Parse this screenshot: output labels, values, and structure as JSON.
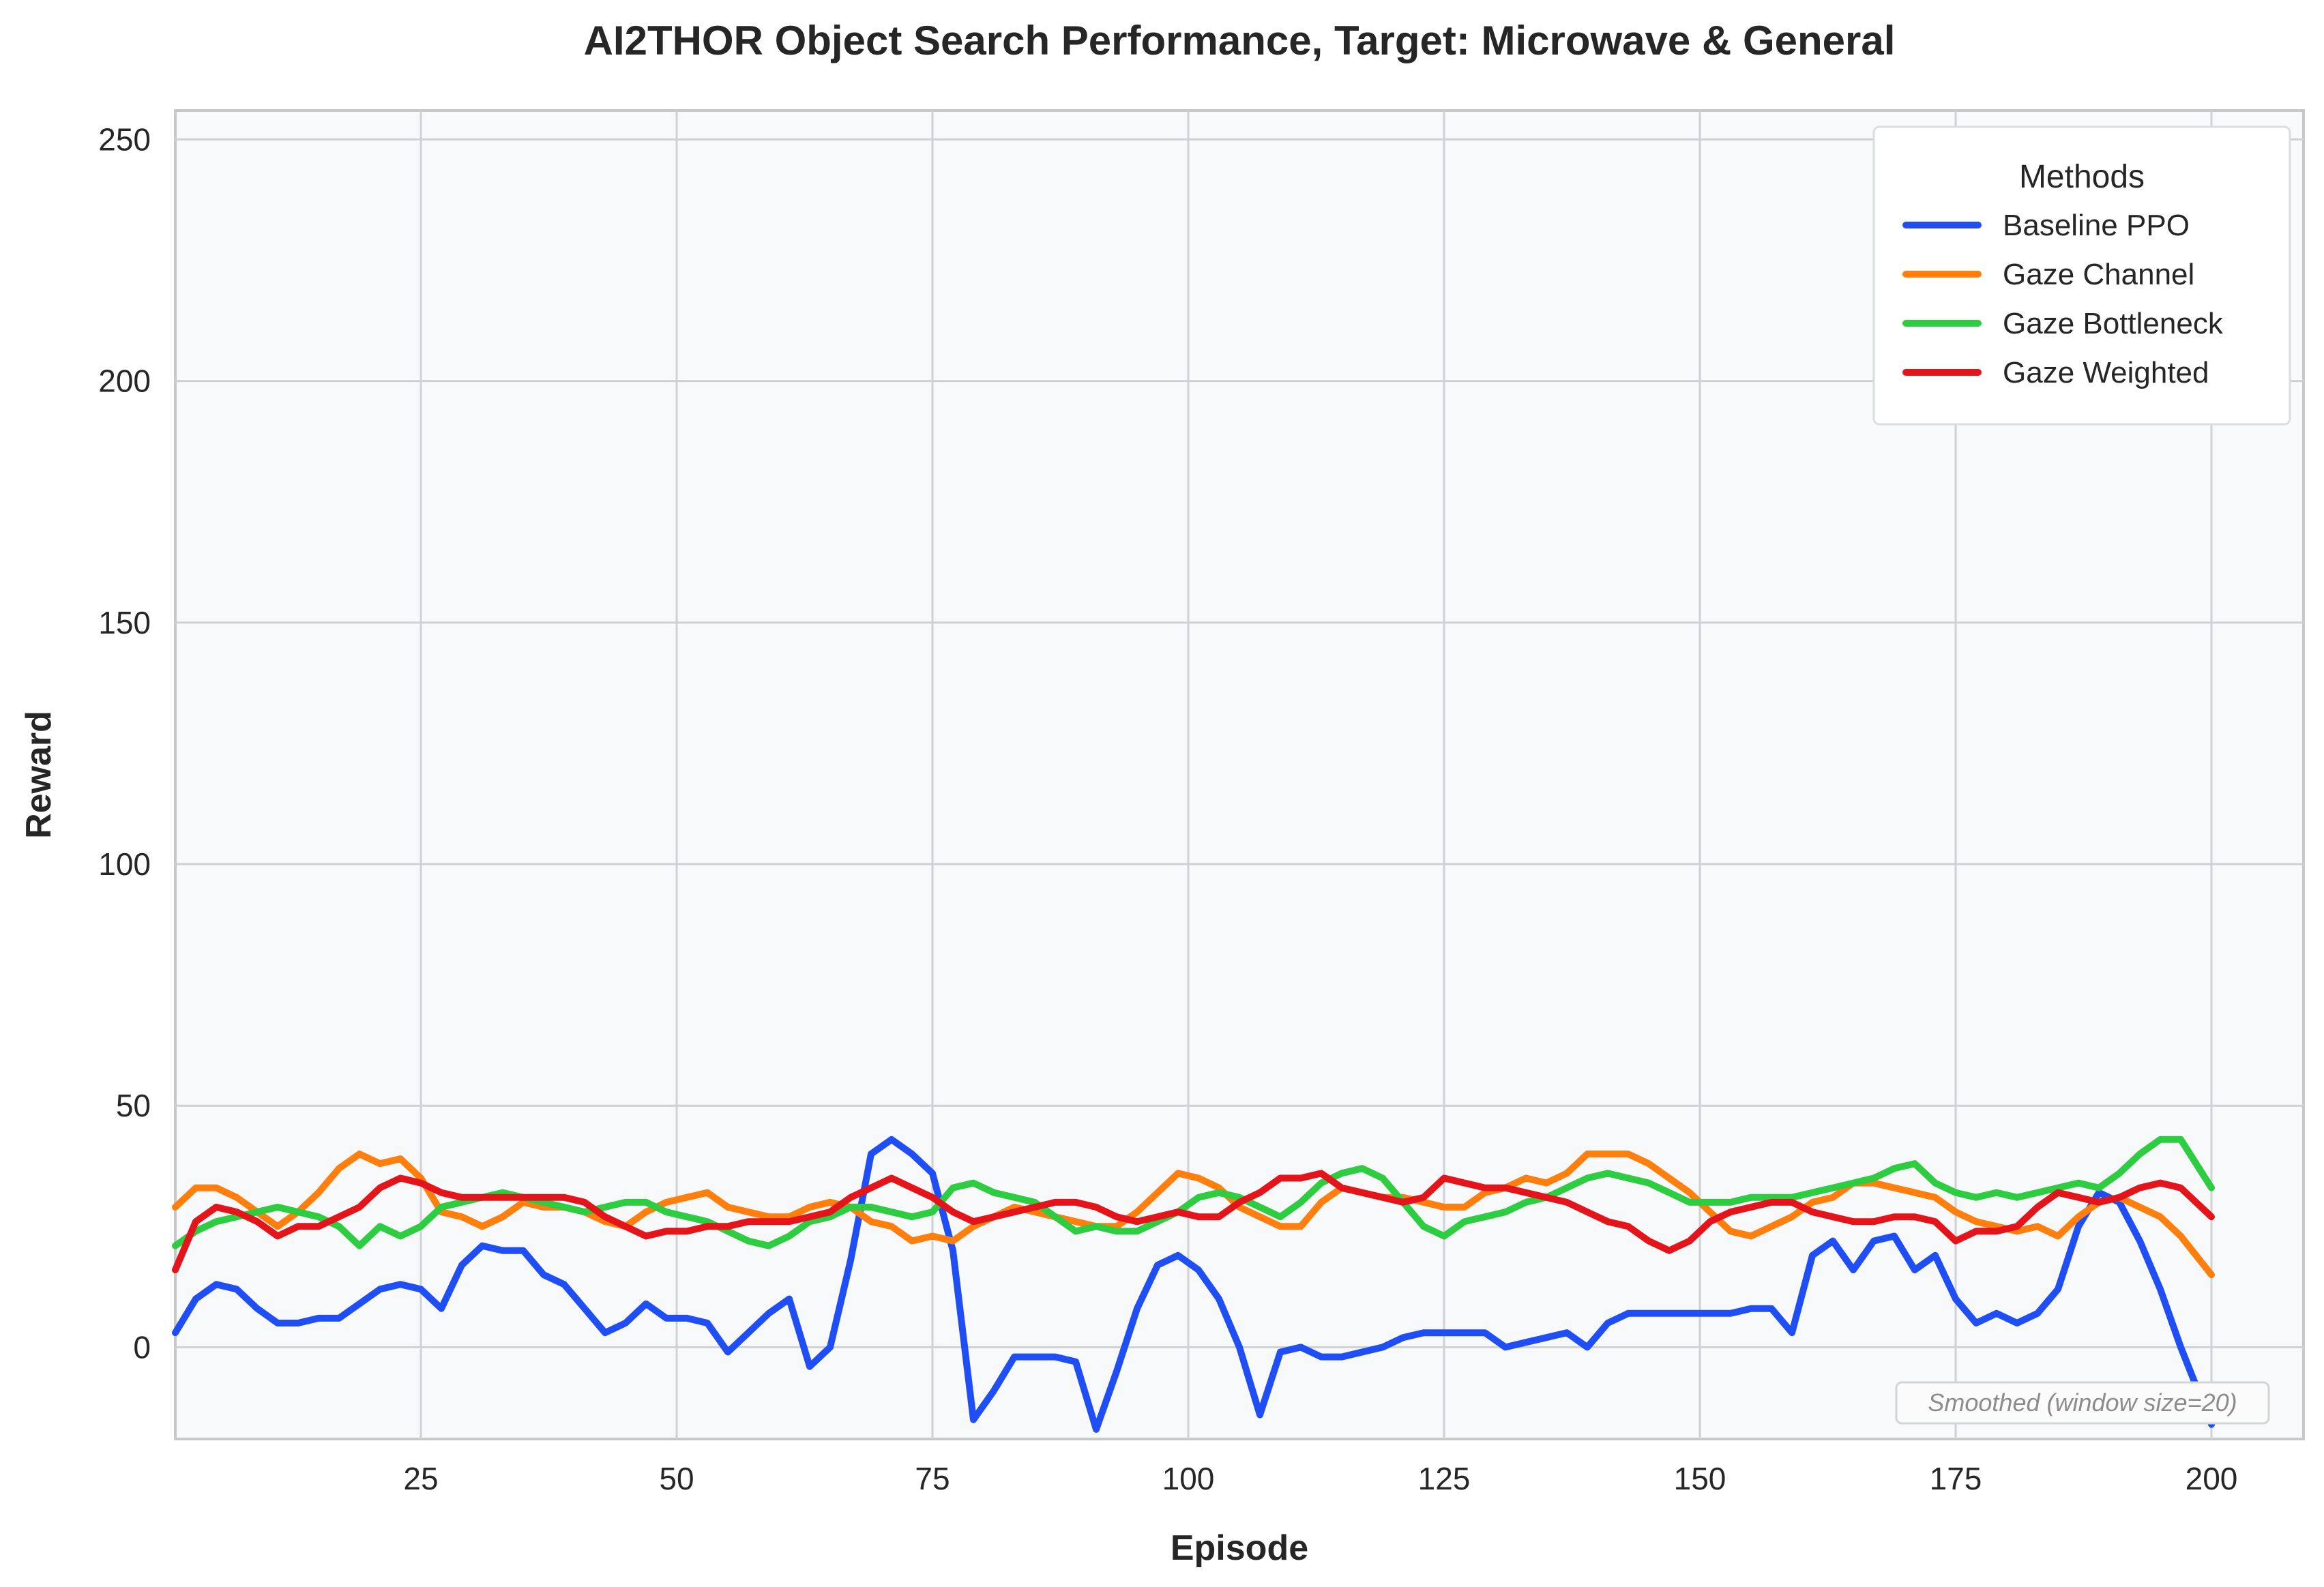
{
  "chart_data": {
    "type": "line",
    "title": "AI2THOR Object Search Performance, Target: Microwave & General",
    "xlabel": "Episode",
    "ylabel": "Reward",
    "xlim": [
      1,
      209
    ],
    "ylim": [
      -19,
      256
    ],
    "xticks": [
      25,
      50,
      75,
      100,
      125,
      150,
      175,
      200
    ],
    "yticks": [
      0,
      50,
      100,
      150,
      200,
      250
    ],
    "grid": true,
    "legend_title": "Methods",
    "legend_position": "top-right",
    "annotation": "Smoothed (window size=20)",
    "series": [
      {
        "name": "Baseline PPO",
        "color": "#1f4ef5",
        "x": [
          1,
          3,
          5,
          7,
          9,
          11,
          13,
          15,
          17,
          19,
          21,
          23,
          25,
          27,
          29,
          31,
          33,
          35,
          37,
          39,
          41,
          43,
          45,
          47,
          49,
          51,
          53,
          55,
          57,
          59,
          61,
          63,
          65,
          67,
          69,
          71,
          73,
          75,
          77,
          79,
          81,
          83,
          85,
          87,
          89,
          91,
          93,
          95,
          97,
          99,
          101,
          103,
          105,
          107,
          109,
          111,
          113,
          115,
          117,
          119,
          121,
          123,
          125,
          127,
          129,
          131,
          133,
          135,
          137,
          139,
          141,
          143,
          145,
          147,
          149,
          151,
          153,
          155,
          157,
          159,
          161,
          163,
          165,
          167,
          169,
          171,
          173,
          175,
          177,
          179,
          181,
          183,
          185,
          187,
          189,
          191,
          193,
          195,
          197,
          200
        ],
        "y": [
          3,
          10,
          13,
          12,
          8,
          5,
          5,
          6,
          6,
          9,
          12,
          13,
          12,
          8,
          17,
          21,
          20,
          20,
          15,
          13,
          8,
          3,
          5,
          9,
          6,
          6,
          5,
          -1,
          3,
          7,
          10,
          -4,
          0,
          18,
          40,
          43,
          40,
          36,
          20,
          -15,
          -9,
          -2,
          -2,
          -2,
          -3,
          -17,
          -5,
          8,
          17,
          19,
          16,
          10,
          0,
          -14,
          -1,
          0,
          -2,
          -2,
          -1,
          0,
          2,
          3,
          3,
          3,
          3,
          0,
          1,
          2,
          3,
          0,
          5,
          7,
          7,
          7,
          7,
          7,
          7,
          8,
          8,
          3,
          19,
          22,
          16,
          22,
          23,
          16,
          19,
          10,
          5,
          7,
          5,
          7,
          12,
          25,
          32,
          30,
          22,
          12,
          0,
          -16
        ]
      },
      {
        "name": "Gaze Channel",
        "color": "#ff7f0e",
        "x": [
          1,
          3,
          5,
          7,
          9,
          11,
          13,
          15,
          17,
          19,
          21,
          23,
          25,
          27,
          29,
          31,
          33,
          35,
          37,
          39,
          41,
          43,
          45,
          47,
          49,
          51,
          53,
          55,
          57,
          59,
          61,
          63,
          65,
          67,
          69,
          71,
          73,
          75,
          77,
          79,
          81,
          83,
          85,
          87,
          89,
          91,
          93,
          95,
          97,
          99,
          101,
          103,
          105,
          107,
          109,
          111,
          113,
          115,
          117,
          119,
          121,
          123,
          125,
          127,
          129,
          131,
          133,
          135,
          137,
          139,
          141,
          143,
          145,
          147,
          149,
          151,
          153,
          155,
          157,
          159,
          161,
          163,
          165,
          167,
          169,
          171,
          173,
          175,
          177,
          179,
          181,
          183,
          185,
          187,
          189,
          191,
          193,
          195,
          197,
          200
        ],
        "y": [
          29,
          33,
          33,
          31,
          28,
          25,
          28,
          32,
          37,
          40,
          38,
          39,
          35,
          28,
          27,
          25,
          27,
          30,
          29,
          29,
          28,
          26,
          25,
          28,
          30,
          31,
          32,
          29,
          28,
          27,
          27,
          29,
          30,
          29,
          26,
          25,
          22,
          23,
          22,
          25,
          27,
          29,
          28,
          27,
          26,
          25,
          25,
          28,
          32,
          36,
          35,
          33,
          29,
          27,
          25,
          25,
          30,
          33,
          32,
          31,
          31,
          30,
          29,
          29,
          32,
          33,
          35,
          34,
          36,
          40,
          40,
          40,
          38,
          35,
          32,
          28,
          24,
          23,
          25,
          27,
          30,
          31,
          34,
          34,
          33,
          32,
          31,
          28,
          26,
          25,
          24,
          25,
          23,
          27,
          30,
          31,
          29,
          27,
          23,
          15
        ]
      },
      {
        "name": "Gaze Bottleneck",
        "color": "#2ecc40",
        "x": [
          1,
          3,
          5,
          7,
          9,
          11,
          13,
          15,
          17,
          19,
          21,
          23,
          25,
          27,
          29,
          31,
          33,
          35,
          37,
          39,
          41,
          43,
          45,
          47,
          49,
          51,
          53,
          55,
          57,
          59,
          61,
          63,
          65,
          67,
          69,
          71,
          73,
          75,
          77,
          79,
          81,
          83,
          85,
          87,
          89,
          91,
          93,
          95,
          97,
          99,
          101,
          103,
          105,
          107,
          109,
          111,
          113,
          115,
          117,
          119,
          121,
          123,
          125,
          127,
          129,
          131,
          133,
          135,
          137,
          139,
          141,
          143,
          145,
          147,
          149,
          151,
          153,
          155,
          157,
          159,
          161,
          163,
          165,
          167,
          169,
          171,
          173,
          175,
          177,
          179,
          181,
          183,
          185,
          187,
          189,
          191,
          193,
          195,
          197,
          200
        ],
        "y": [
          21,
          24,
          26,
          27,
          28,
          29,
          28,
          27,
          25,
          21,
          25,
          23,
          25,
          29,
          30,
          31,
          32,
          31,
          30,
          29,
          28,
          29,
          30,
          30,
          28,
          27,
          26,
          24,
          22,
          21,
          23,
          26,
          27,
          29,
          29,
          28,
          27,
          28,
          33,
          34,
          32,
          31,
          30,
          27,
          24,
          25,
          24,
          24,
          26,
          28,
          31,
          32,
          31,
          29,
          27,
          30,
          34,
          36,
          37,
          35,
          30,
          25,
          23,
          26,
          27,
          28,
          30,
          31,
          33,
          35,
          36,
          35,
          34,
          32,
          30,
          30,
          30,
          31,
          31,
          31,
          32,
          33,
          34,
          35,
          37,
          38,
          34,
          32,
          31,
          32,
          31,
          32,
          33,
          34,
          33,
          36,
          40,
          43,
          43,
          33
        ]
      },
      {
        "name": "Gaze Weighted",
        "color": "#e3151a",
        "x": [
          1,
          3,
          5,
          7,
          9,
          11,
          13,
          15,
          17,
          19,
          21,
          23,
          25,
          27,
          29,
          31,
          33,
          35,
          37,
          39,
          41,
          43,
          45,
          47,
          49,
          51,
          53,
          55,
          57,
          59,
          61,
          63,
          65,
          67,
          69,
          71,
          73,
          75,
          77,
          79,
          81,
          83,
          85,
          87,
          89,
          91,
          93,
          95,
          97,
          99,
          101,
          103,
          105,
          107,
          109,
          111,
          113,
          115,
          117,
          119,
          121,
          123,
          125,
          127,
          129,
          131,
          133,
          135,
          137,
          139,
          141,
          143,
          145,
          147,
          149,
          151,
          153,
          155,
          157,
          159,
          161,
          163,
          165,
          167,
          169,
          171,
          173,
          175,
          177,
          179,
          181,
          183,
          185,
          187,
          189,
          191,
          193,
          195,
          197,
          200
        ],
        "y": [
          16,
          26,
          29,
          28,
          26,
          23,
          25,
          25,
          27,
          29,
          33,
          35,
          34,
          32,
          31,
          31,
          31,
          31,
          31,
          31,
          30,
          27,
          25,
          23,
          24,
          24,
          25,
          25,
          26,
          26,
          26,
          27,
          28,
          31,
          33,
          35,
          33,
          31,
          28,
          26,
          27,
          28,
          29,
          30,
          30,
          29,
          27,
          26,
          27,
          28,
          27,
          27,
          30,
          32,
          35,
          35,
          36,
          33,
          32,
          31,
          30,
          31,
          35,
          34,
          33,
          33,
          32,
          31,
          30,
          28,
          26,
          25,
          22,
          20,
          22,
          26,
          28,
          29,
          30,
          30,
          28,
          27,
          26,
          26,
          27,
          27,
          26,
          22,
          24,
          24,
          25,
          29,
          32,
          31,
          30,
          31,
          33,
          34,
          33,
          27
        ]
      }
    ]
  }
}
